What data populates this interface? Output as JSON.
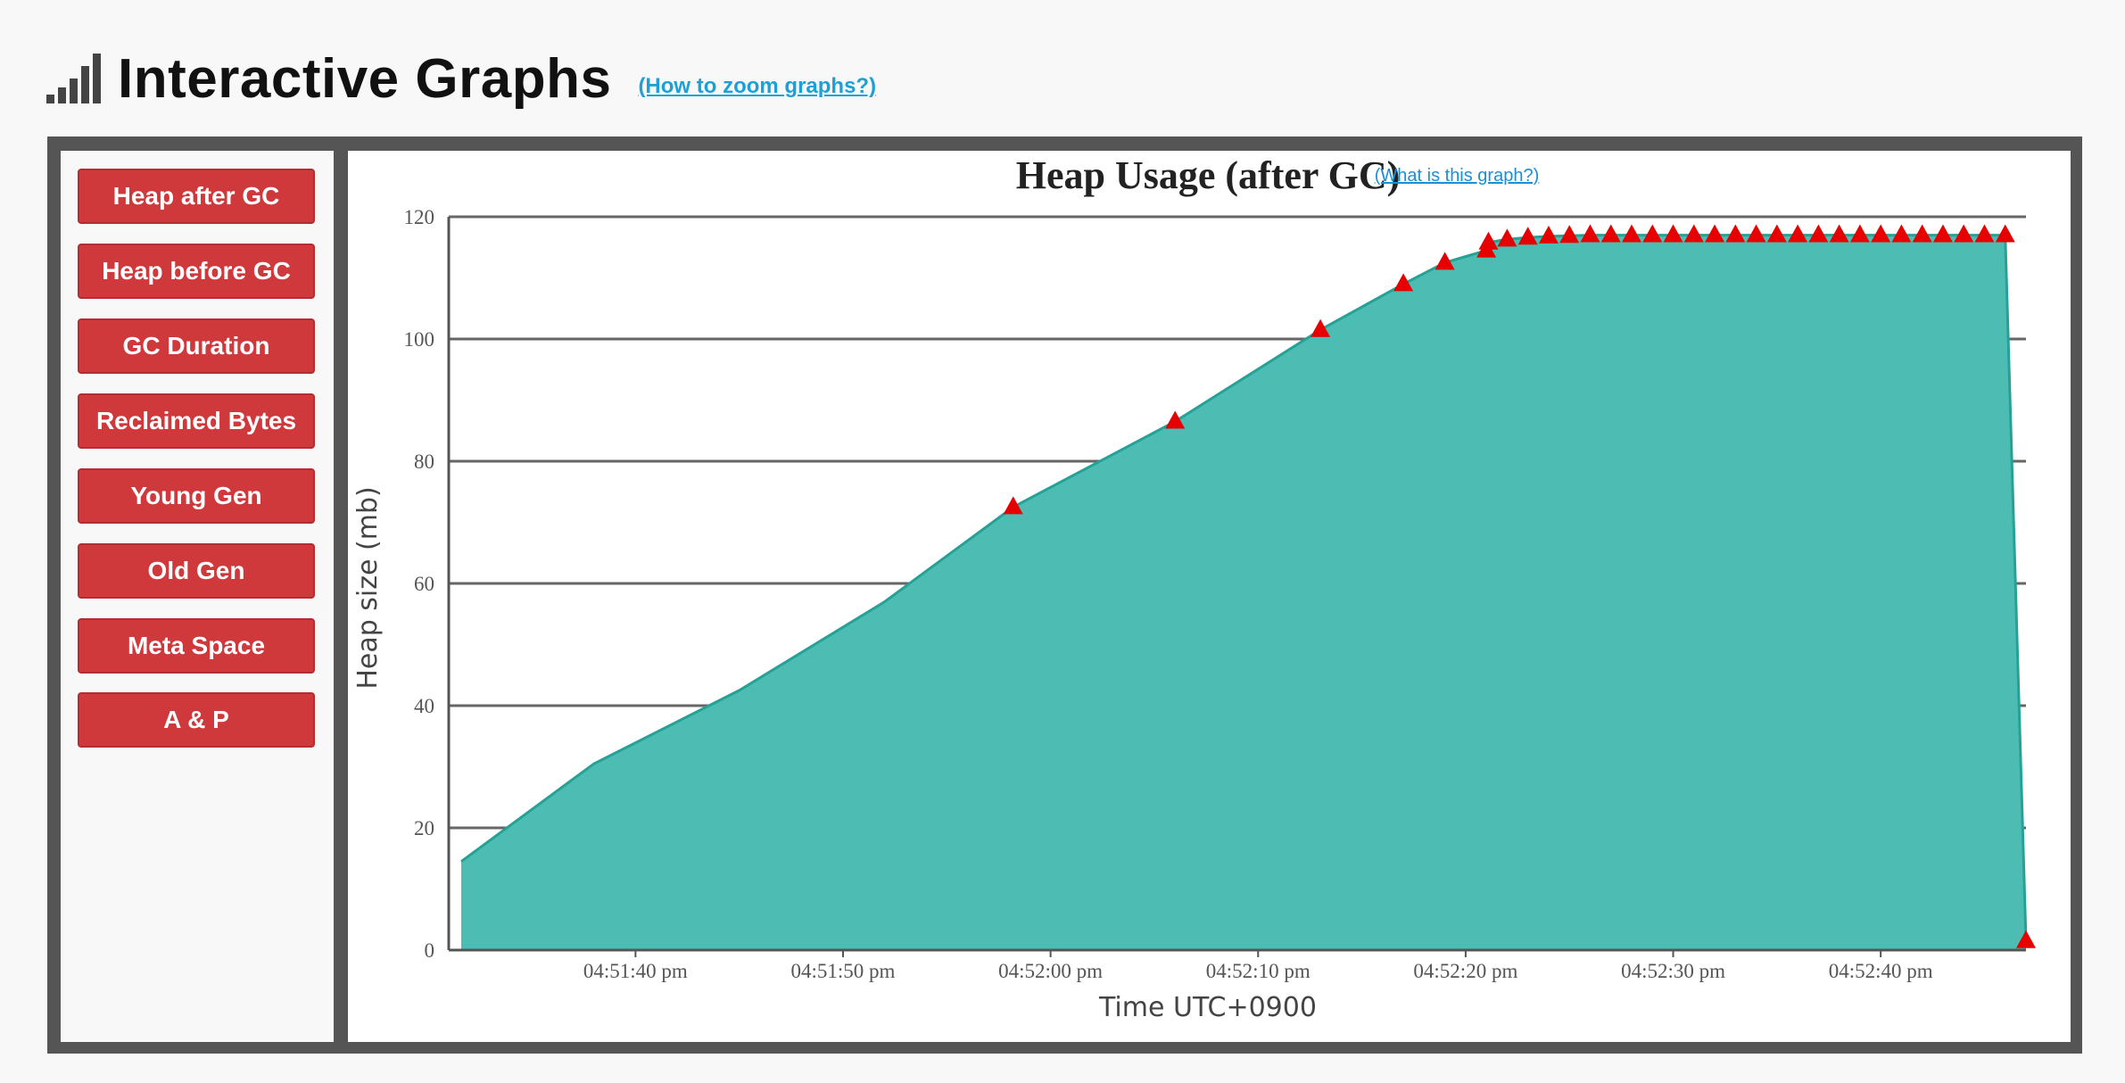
{
  "header": {
    "title": "Interactive Graphs",
    "zoom_link": "(How to zoom graphs?)",
    "icon": "bar-chart-icon"
  },
  "sidebar": {
    "items": [
      {
        "label": "Heap after GC"
      },
      {
        "label": "Heap before GC"
      },
      {
        "label": "GC Duration"
      },
      {
        "label": "Reclaimed Bytes"
      },
      {
        "label": "Young Gen"
      },
      {
        "label": "Old Gen"
      },
      {
        "label": "Meta Space"
      },
      {
        "label": "A & P"
      }
    ],
    "button_color": "#d0393c"
  },
  "chart": {
    "help_link": "(What is this graph?)"
  },
  "chart_data": {
    "type": "area",
    "title": "Heap Usage (after GC)",
    "xlabel": "Time UTC+0900",
    "ylabel": "Heap size (mb)",
    "ylim": [
      0,
      120
    ],
    "yticks": [
      0,
      20,
      40,
      60,
      80,
      100,
      120
    ],
    "xlim": [
      "04:51:31",
      "04:52:47"
    ],
    "xticks": [
      "04:51:40 pm",
      "04:51:50 pm",
      "04:52:00 pm",
      "04:52:10 pm",
      "04:52:20 pm",
      "04:52:30 pm",
      "04:52:40 pm"
    ],
    "xtick_times": [
      "04:51:40",
      "04:51:50",
      "04:52:00",
      "04:52:10",
      "04:52:20",
      "04:52:30",
      "04:52:40"
    ],
    "grid": true,
    "fill_color": "#4dbdb4",
    "line_color": "#26a196",
    "marker_color": "#e60000",
    "series": [
      {
        "x": [
          "04:51:31.6",
          "04:51:38.0",
          "04:51:45.0",
          "04:51:52.0",
          "04:51:58.2",
          "04:52:06.0",
          "04:52:13.0",
          "04:52:17.0",
          "04:52:19.0",
          "04:52:21.0",
          "04:52:21.1",
          "04:52:22.0",
          "04:52:23.0",
          "04:52:24.0",
          "04:52:25.0",
          "04:52:26.0",
          "04:52:27.0",
          "04:52:28.0",
          "04:52:29.0",
          "04:52:30.0",
          "04:52:31.0",
          "04:52:32.0",
          "04:52:33.0",
          "04:52:34.0",
          "04:52:35.0",
          "04:52:36.0",
          "04:52:37.0",
          "04:52:38.0",
          "04:52:39.0",
          "04:52:40.0",
          "04:52:41.0",
          "04:52:42.0",
          "04:52:43.0",
          "04:52:44.0",
          "04:52:45.0",
          "04:52:46.0",
          "04:52:47.0"
        ],
        "y": [
          14.5,
          30.5,
          42.5,
          57.0,
          72.5,
          86.5,
          101.5,
          109.0,
          112.5,
          114.5,
          115.8,
          116.3,
          116.6,
          116.8,
          116.9,
          117.0,
          117.0,
          117.0,
          117.0,
          117.0,
          117.0,
          117.0,
          117.0,
          117.0,
          117.0,
          117.0,
          117.0,
          117.0,
          117.0,
          117.0,
          117.0,
          117.0,
          117.0,
          117.0,
          117.0,
          117.0,
          1.5
        ],
        "markers": [
          false,
          false,
          false,
          false,
          true,
          true,
          true,
          true,
          true,
          true,
          true,
          true,
          true,
          true,
          true,
          true,
          true,
          true,
          true,
          true,
          true,
          true,
          true,
          true,
          true,
          true,
          true,
          true,
          true,
          true,
          true,
          true,
          true,
          true,
          true,
          true,
          true
        ]
      }
    ]
  }
}
